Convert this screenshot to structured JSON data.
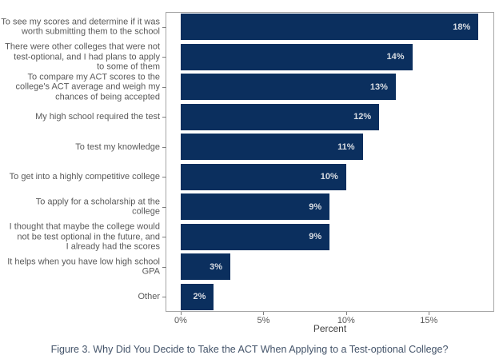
{
  "figure": {
    "caption": "Figure 3. Why Did You Decide to Take the ACT When Applying to a Test-optional College?"
  },
  "chart_data": {
    "type": "bar",
    "orientation": "horizontal",
    "title": "",
    "xlabel": "Percent",
    "ylabel": "",
    "xlim": [
      0,
      19
    ],
    "xticks": [
      0,
      5,
      10,
      15
    ],
    "xtick_labels": [
      "0%",
      "5%",
      "10%",
      "15%"
    ],
    "grid": false,
    "legend": null,
    "categories": [
      "To see my scores and determine if it was worth submitting them to the school",
      "There were other colleges that were not test-optional, and I had plans to apply to some of them",
      "To compare my ACT scores to the college's ACT average and weigh my chances of being accepted",
      "My high school required the test",
      "To test my knowledge",
      "To get into a highly competitive college",
      "To apply for a scholarship at the college",
      "I thought that maybe the college would not be test optional in the future, and I already had the scores",
      "It helps when you have low high school GPA",
      "Other"
    ],
    "category_lines": [
      [
        "To see my scores and determine if it was",
        "worth submitting them to the school"
      ],
      [
        "There were other colleges that were not",
        "test-optional, and I had plans to apply",
        "to some of them"
      ],
      [
        "To compare my ACT scores to the",
        "college's ACT average and weigh my",
        "chances of being accepted"
      ],
      [
        "My high school required the test"
      ],
      [
        "To test my knowledge"
      ],
      [
        "To get into a highly competitive college"
      ],
      [
        "To apply for a scholarship at the",
        "college"
      ],
      [
        "I thought that maybe the college would",
        "not be test optional in the future, and",
        "I already had the scores"
      ],
      [
        "It helps when you have low high school",
        "GPA"
      ],
      [
        "Other"
      ]
    ],
    "values": [
      18,
      14,
      13,
      12,
      11,
      10,
      9,
      9,
      3,
      2
    ],
    "value_labels": [
      "18%",
      "14%",
      "13%",
      "12%",
      "11%",
      "10%",
      "9%",
      "9%",
      "3%",
      "2%"
    ],
    "colors": {
      "bar": "#0b2f5e",
      "bar_label": "#d9dde3",
      "axis_text": "#595959",
      "panel_border": "#a6a6a6",
      "tick": "#808080",
      "caption": "#44546A"
    }
  }
}
